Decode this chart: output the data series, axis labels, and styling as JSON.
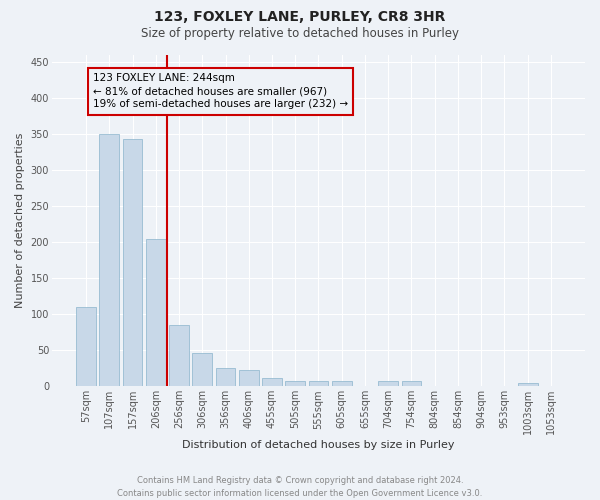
{
  "title": "123, FOXLEY LANE, PURLEY, CR8 3HR",
  "subtitle": "Size of property relative to detached houses in Purley",
  "xlabel": "Distribution of detached houses by size in Purley",
  "ylabel": "Number of detached properties",
  "bar_color": "#c8d8e8",
  "bar_edge_color": "#8ab4cc",
  "background_color": "#eef2f7",
  "grid_color": "#ffffff",
  "annotation_line_color": "#cc0000",
  "annotation_box_color": "#cc0000",
  "annotation_text": "123 FOXLEY LANE: 244sqm\n← 81% of detached houses are smaller (967)\n19% of semi-detached houses are larger (232) →",
  "footer": "Contains HM Land Registry data © Crown copyright and database right 2024.\nContains public sector information licensed under the Open Government Licence v3.0.",
  "categories": [
    "57sqm",
    "107sqm",
    "157sqm",
    "206sqm",
    "256sqm",
    "306sqm",
    "356sqm",
    "406sqm",
    "455sqm",
    "505sqm",
    "555sqm",
    "605sqm",
    "655sqm",
    "704sqm",
    "754sqm",
    "804sqm",
    "854sqm",
    "904sqm",
    "953sqm",
    "1003sqm",
    "1053sqm"
  ],
  "values": [
    110,
    350,
    343,
    205,
    85,
    46,
    25,
    22,
    12,
    8,
    8,
    8,
    0,
    8,
    8,
    0,
    0,
    0,
    0,
    5,
    0
  ],
  "vline_x": 3.5,
  "ylim": [
    0,
    460
  ],
  "yticks": [
    0,
    50,
    100,
    150,
    200,
    250,
    300,
    350,
    400,
    450
  ],
  "title_fontsize": 10,
  "subtitle_fontsize": 8.5,
  "ylabel_fontsize": 8,
  "xlabel_fontsize": 8,
  "tick_fontsize": 7,
  "footer_fontsize": 6,
  "annot_fontsize": 7.5
}
